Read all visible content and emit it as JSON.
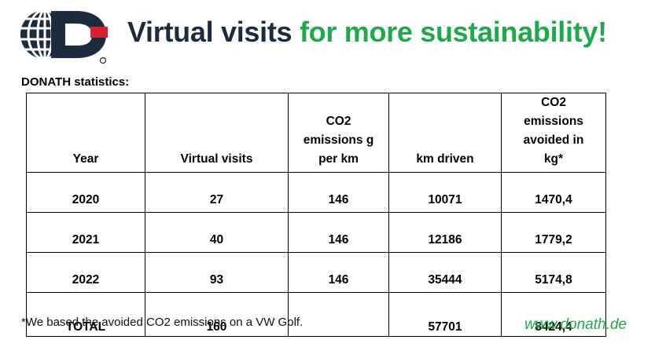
{
  "header": {
    "title_part1": "Virtual visits",
    "title_part2": "for more sustainability!"
  },
  "brand": {
    "logo_icon": "donath-globe-logo",
    "colors": {
      "navy": "#1d2b3f",
      "red": "#d6202e",
      "green": "#1ea94a"
    }
  },
  "section_label": "DONATH statistics:",
  "table": {
    "columns": [
      "Year",
      "Virtual visits",
      "CO2 emissions g per km",
      "km driven",
      "CO2 emissions avoided in kg*"
    ],
    "rows": [
      [
        "2020",
        "27",
        "146",
        "10071",
        "1470,4"
      ],
      [
        "2021",
        "40",
        "146",
        "12186",
        "1779,2"
      ],
      [
        "2022",
        "93",
        "146",
        "35444",
        "5174,8"
      ]
    ],
    "total": [
      "TOTAL",
      "160",
      "",
      "57701",
      "8424,4"
    ]
  },
  "footnote": "*We based the avoided CO2 emissions on a VW Golf.",
  "website": "www.donath.de"
}
